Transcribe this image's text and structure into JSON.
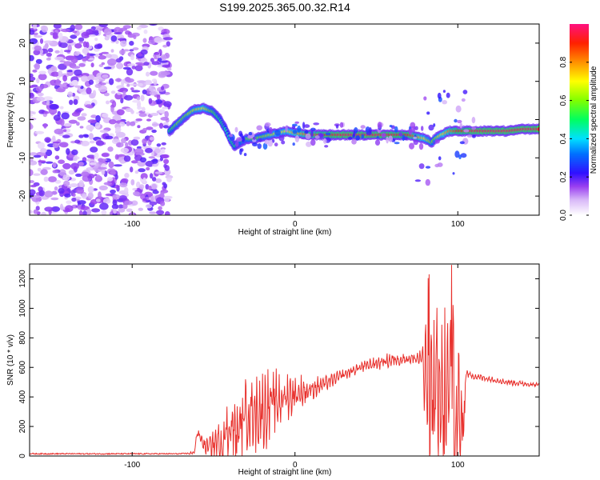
{
  "title": "S199.2025.365.00.32.R14",
  "chart_data": [
    {
      "type": "heatmap",
      "xlabel": "Height of straight line (km)",
      "ylabel": "Frequency (Hz)",
      "xlim": [
        -163,
        150
      ],
      "ylim": [
        -25,
        25
      ],
      "xticks": [
        -100,
        0,
        100
      ],
      "yticks": [
        -20,
        -10,
        0,
        10,
        20
      ],
      "colorbar": {
        "label": "Normalized spectral amplitude",
        "range": [
          0,
          1
        ],
        "ticks": [
          "0.0",
          "0.2",
          "0.4",
          "0.6",
          "0.8"
        ],
        "tick_values": [
          0,
          0.2,
          0.4,
          0.6,
          0.8
        ]
      },
      "ridge": {
        "x": [
          -77,
          -72,
          -67,
          -62,
          -56,
          -50,
          -46,
          -42,
          -40,
          -37,
          -34,
          -30,
          -25,
          -20,
          -15,
          -10,
          -5,
          0,
          10,
          30,
          50,
          70,
          80,
          84,
          86,
          90,
          95,
          100,
          105,
          110,
          120,
          130,
          140,
          150
        ],
        "y": [
          -3,
          -1,
          1,
          2.5,
          3,
          2,
          0,
          -3,
          -5,
          -7,
          -6,
          -5,
          -5,
          -4.5,
          -4,
          -3.5,
          -3,
          -3.5,
          -4,
          -4,
          -4,
          -4,
          -5,
          -6,
          -5,
          -4,
          -3,
          -3,
          -3,
          -3,
          -3,
          -3,
          -2.5,
          -2.5
        ],
        "amplitude": [
          0.5,
          0.6,
          0.6,
          0.65,
          0.7,
          0.55,
          0.5,
          0.45,
          0.45,
          0.5,
          0.55,
          0.6,
          0.6,
          0.6,
          0.65,
          0.7,
          0.7,
          0.75,
          0.85,
          0.95,
          0.95,
          0.9,
          0.7,
          0.6,
          0.6,
          0.7,
          0.8,
          0.9,
          0.9,
          0.95,
          0.95,
          0.95,
          0.95,
          0.95
        ]
      },
      "noise_region_x": [
        -163,
        -77
      ]
    },
    {
      "type": "line",
      "xlabel": "Height of straight line (km)",
      "ylabel": "SNR (10 * v/v)",
      "xlim": [
        -163,
        150
      ],
      "ylim": [
        0,
        1300
      ],
      "xticks": [
        -100,
        0,
        100
      ],
      "yticks": [
        0,
        200,
        400,
        600,
        800,
        1000,
        1200
      ],
      "color": "#e8302c",
      "envelope": {
        "x": [
          -163,
          -120,
          -70,
          -62,
          -60,
          -55,
          -45,
          -40,
          -35,
          -30,
          -20,
          -10,
          0,
          10,
          20,
          30,
          40,
          50,
          60,
          70,
          78,
          80,
          85,
          88,
          90,
          95,
          100,
          102,
          104,
          105,
          110,
          120,
          130,
          140,
          150
        ],
        "base": [
          15,
          15,
          15,
          20,
          160,
          60,
          90,
          200,
          150,
          300,
          300,
          380,
          420,
          450,
          500,
          550,
          600,
          630,
          650,
          660,
          660,
          500,
          400,
          350,
          300,
          450,
          200,
          250,
          300,
          560,
          540,
          520,
          500,
          490,
          480
        ],
        "amp": [
          8,
          8,
          8,
          10,
          20,
          40,
          140,
          200,
          180,
          220,
          220,
          160,
          110,
          60,
          40,
          30,
          30,
          40,
          40,
          30,
          50,
          300,
          450,
          550,
          600,
          500,
          550,
          400,
          300,
          20,
          20,
          15,
          15,
          15,
          15
        ]
      }
    }
  ]
}
